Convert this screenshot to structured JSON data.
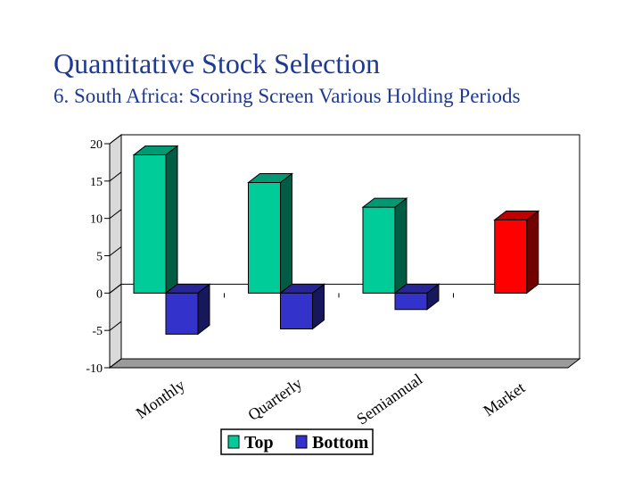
{
  "slide": {
    "title": "Quantitative Stock Selection",
    "subtitle": "6. South Africa: Scoring Screen Various Holding Periods"
  },
  "chart_data": {
    "type": "bar",
    "categories": [
      "Monthly",
      "Quarterly",
      "Semiannual",
      "Market"
    ],
    "series": [
      {
        "name": "Top",
        "values": [
          18.5,
          14.8,
          11.5,
          null
        ],
        "color": "#00cc99"
      },
      {
        "name": "Bottom",
        "values": [
          -5.5,
          -4.8,
          -2.2,
          null
        ],
        "color": "#3333cc"
      },
      {
        "name": "",
        "values": [
          null,
          null,
          null,
          9.8
        ],
        "color": "#ff0000"
      }
    ],
    "ylim": [
      -10,
      20
    ],
    "yticks": [
      20,
      15,
      10,
      5,
      0,
      -5,
      -10
    ],
    "ytick_labels": [
      "20",
      "15",
      "10",
      "5",
      "0",
      "-5",
      "-10"
    ],
    "xlabel": "",
    "ylabel": "",
    "legend": {
      "position": "bottom",
      "entries": [
        "Top",
        "Bottom"
      ]
    },
    "grid": false,
    "style": "3d-column"
  }
}
